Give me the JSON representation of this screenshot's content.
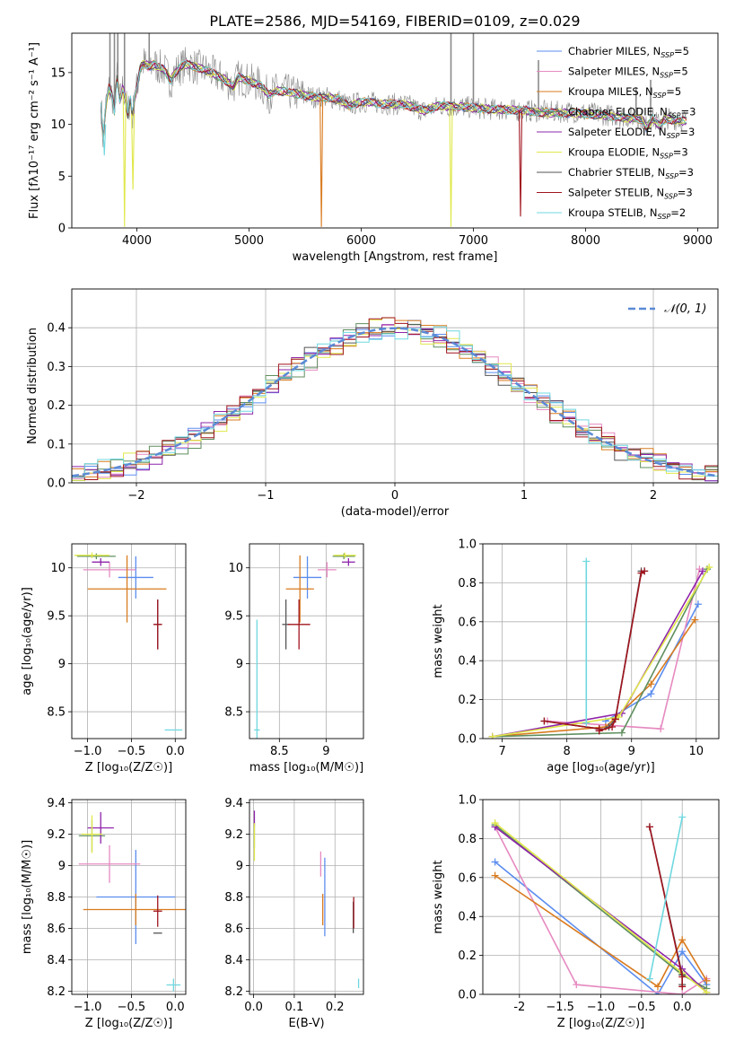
{
  "figure": {
    "title": "PLATE=2586, MJD=54169, FIBERID=0109, z=0.029"
  },
  "colors": {
    "Chabrier MILES": "#5b8def",
    "Salpeter MILES": "#e68ac0",
    "Kroupa MILES": "#d97b1f",
    "Chabrier ELODIE": "#5f8f5f",
    "Salpeter ELODIE": "#8e24aa",
    "Kroupa ELODIE": "#e0e84a",
    "Chabrier STELIB": "#555555",
    "Salpeter STELIB": "#a0141e",
    "Kroupa STELIB": "#6fd8e0",
    "data": "#8a8a8a",
    "gauss": "#5b8ad6",
    "grid": "#b0b0b0"
  },
  "chart_data": [
    {
      "id": "spectrum",
      "type": "line",
      "xlabel": "wavelength [Angstrom, rest frame]",
      "ylabel": "Flux [fλ10⁻¹⁷ erg cm⁻² s⁻¹ A⁻¹]",
      "xlim": [
        3420,
        9180
      ],
      "ylim": [
        0,
        18.8
      ],
      "xticks": [
        4000,
        5000,
        6000,
        7000,
        8000,
        9000
      ],
      "yticks": [
        0,
        5,
        10,
        15
      ],
      "grid": false,
      "legend_position": "right",
      "legend": [
        {
          "label": "Chabrier MILES, N",
          "sub": "SSP",
          "tail": "=5",
          "color_key": "Chabrier MILES"
        },
        {
          "label": "Salpeter MILES, N",
          "sub": "SSP",
          "tail": "=5",
          "color_key": "Salpeter MILES"
        },
        {
          "label": "Kroupa MILES, N",
          "sub": "SSP",
          "tail": "=5",
          "color_key": "Kroupa MILES"
        },
        {
          "label": "Chabrier ELODIE, N",
          "sub": "SSP",
          "tail": "=3",
          "color_key": "Chabrier ELODIE"
        },
        {
          "label": "Salpeter ELODIE, N",
          "sub": "SSP",
          "tail": "=3",
          "color_key": "Salpeter ELODIE"
        },
        {
          "label": "Kroupa ELODIE, N",
          "sub": "SSP",
          "tail": "=3",
          "color_key": "Kroupa ELODIE"
        },
        {
          "label": "Chabrier STELIB, N",
          "sub": "SSP",
          "tail": "=3",
          "color_key": "Chabrier STELIB"
        },
        {
          "label": "Salpeter STELIB, N",
          "sub": "SSP",
          "tail": "=3",
          "color_key": "Salpeter STELIB"
        },
        {
          "label": "Kroupa STELIB, N",
          "sub": "SSP",
          "tail": "=2",
          "color_key": "Kroupa STELIB"
        }
      ],
      "data_series": [
        [
          3680,
          11.8
        ],
        [
          3700,
          8.5
        ],
        [
          3720,
          11.5
        ],
        [
          3750,
          13.5
        ],
        [
          3780,
          12.8
        ],
        [
          3800,
          11.2
        ],
        [
          3820,
          14.8
        ],
        [
          3850,
          12.2
        ],
        [
          3870,
          13.5
        ],
        [
          3890,
          13
        ],
        [
          3920,
          10.8
        ],
        [
          3940,
          12.8
        ],
        [
          3960,
          10.5
        ],
        [
          3980,
          12.6
        ],
        [
          4000,
          13.5
        ],
        [
          4030,
          15.5
        ],
        [
          4060,
          15.9
        ],
        [
          4100,
          15.6
        ],
        [
          4150,
          15.8
        ],
        [
          4200,
          15.5
        ],
        [
          4250,
          15.2
        ],
        [
          4300,
          14.2
        ],
        [
          4340,
          15
        ],
        [
          4400,
          15.6
        ],
        [
          4450,
          15.9
        ],
        [
          4500,
          15.6
        ],
        [
          4600,
          15.3
        ],
        [
          4700,
          14.8
        ],
        [
          4800,
          14.2
        ],
        [
          4860,
          13.6
        ],
        [
          4900,
          14.5
        ],
        [
          5000,
          14.2
        ],
        [
          5100,
          13.8
        ],
        [
          5175,
          12.8
        ],
        [
          5250,
          13.3
        ],
        [
          5400,
          13
        ],
        [
          5500,
          12.8
        ],
        [
          5600,
          12.6
        ],
        [
          5700,
          12.6
        ],
        [
          5800,
          12.4
        ],
        [
          5890,
          11.8
        ],
        [
          6000,
          12.2
        ],
        [
          6200,
          12
        ],
        [
          6400,
          11.9
        ],
        [
          6563,
          11.3
        ],
        [
          6700,
          11.8
        ],
        [
          6900,
          11.7
        ],
        [
          7100,
          11.5
        ],
        [
          7300,
          11.4
        ],
        [
          7500,
          11.3
        ],
        [
          7700,
          11.2
        ],
        [
          7900,
          11.2
        ],
        [
          8100,
          11
        ],
        [
          8300,
          10.8
        ],
        [
          8500,
          10.6
        ],
        [
          8542,
          9.8
        ],
        [
          8600,
          10.6
        ],
        [
          8662,
          9.9
        ],
        [
          8700,
          10.6
        ],
        [
          8900,
          10.4
        ]
      ],
      "data_spikes": [
        [
          3760,
          18.8
        ],
        [
          3800,
          18.8
        ],
        [
          3830,
          18.8
        ],
        [
          3890,
          18.8
        ],
        [
          4110,
          18.8
        ],
        [
          6800,
          18.8
        ],
        [
          7000,
          18.8
        ],
        [
          7580,
          16.2
        ],
        [
          8450,
          13.6
        ],
        [
          8580,
          14.3
        ]
      ],
      "model_dips": [
        {
          "key": "Kroupa ELODIE",
          "x": 3890,
          "min": 0.1
        },
        {
          "key": "Kroupa ELODIE",
          "x": 3965,
          "min": 3.7
        },
        {
          "key": "Kroupa MILES",
          "x": 5645,
          "min": 0.1
        },
        {
          "key": "Kroupa ELODIE",
          "x": 6800,
          "min": 0.1
        },
        {
          "key": "Salpeter STELIB",
          "x": 7420,
          "min": 1.1
        },
        {
          "key": "Kroupa STELIB",
          "x": 3710,
          "min": 7.0
        }
      ]
    },
    {
      "id": "residuals",
      "type": "histogram",
      "xlabel": "(data-model)/error",
      "ylabel": "Normed distribution",
      "xlim": [
        -2.5,
        2.5
      ],
      "ylim": [
        0,
        0.5
      ],
      "xticks": [
        -2,
        -1,
        0,
        1,
        2
      ],
      "yticks": [
        0.0,
        0.1,
        0.2,
        0.3,
        0.4
      ],
      "grid": true,
      "legend_position": "top-right",
      "legend": [
        {
          "label": "𝒩(0, 1)",
          "color_key": "gauss",
          "style": "dashed"
        }
      ],
      "bin_width": 0.1
    },
    {
      "id": "age_vs_Z",
      "type": "errorbar",
      "xlabel": "Z [log₁₀(Z/Z☉)]",
      "ylabel": "age  [log₁₀(age/yr)]",
      "xlim": [
        -1.18,
        0.12
      ],
      "ylim": [
        8.22,
        10.25
      ],
      "xticks": [
        -1.0,
        -0.5,
        0.0
      ],
      "yticks": [
        8.5,
        9.0,
        9.5,
        10.0
      ],
      "grid": true,
      "points": [
        {
          "key": "Chabrier MILES",
          "x": -0.45,
          "xerr": 0.2,
          "y": 9.9,
          "yerr": 0.22
        },
        {
          "key": "Salpeter MILES",
          "x": -0.75,
          "xerr": 0.3,
          "y": 9.98,
          "yerr": 0.08
        },
        {
          "key": "Kroupa MILES",
          "x": -0.55,
          "xerr": 0.45,
          "y": 9.78,
          "yerr": 0.35
        },
        {
          "key": "Chabrier ELODIE",
          "x": -0.9,
          "xerr": 0.22,
          "y": 10.12,
          "yerr": 0.03
        },
        {
          "key": "Salpeter ELODIE",
          "x": -0.85,
          "xerr": 0.1,
          "y": 10.06,
          "yerr": 0.04
        },
        {
          "key": "Kroupa ELODIE",
          "x": -0.95,
          "xerr": 0.2,
          "y": 10.13,
          "yerr": 0.03
        },
        {
          "key": "Chabrier STELIB",
          "x": -0.2,
          "xerr": 0.04,
          "y": 9.41,
          "yerr": 0.26
        },
        {
          "key": "Salpeter STELIB",
          "x": -0.2,
          "xerr": 0.05,
          "y": 9.41,
          "yerr": 0.26
        },
        {
          "key": "Kroupa STELIB",
          "x": -0.02,
          "xerr": 0.1,
          "y": 8.31,
          "yerr": 0.0
        }
      ]
    },
    {
      "id": "age_vs_mass",
      "type": "errorbar",
      "xlabel": "mass [log₁₀(M/M☉)]",
      "ylabel": "",
      "xlim": [
        8.18,
        9.4
      ],
      "ylim": [
        8.22,
        10.25
      ],
      "xticks": [
        8.5,
        9.0
      ],
      "yticks": [
        8.5,
        9.0,
        9.5,
        10.0
      ],
      "grid": true,
      "points": [
        {
          "key": "Chabrier MILES",
          "x": 8.8,
          "xerr": 0.15,
          "y": 9.9,
          "yerr": 0.22
        },
        {
          "key": "Salpeter MILES",
          "x": 9.01,
          "xerr": 0.1,
          "y": 9.98,
          "yerr": 0.08
        },
        {
          "key": "Kroupa MILES",
          "x": 8.72,
          "xerr": 0.15,
          "y": 9.78,
          "yerr": 0.35
        },
        {
          "key": "Chabrier ELODIE",
          "x": 9.19,
          "xerr": 0.12,
          "y": 10.12,
          "yerr": 0.03
        },
        {
          "key": "Salpeter ELODIE",
          "x": 9.24,
          "xerr": 0.07,
          "y": 10.06,
          "yerr": 0.04
        },
        {
          "key": "Kroupa ELODIE",
          "x": 9.2,
          "xerr": 0.12,
          "y": 10.13,
          "yerr": 0.03
        },
        {
          "key": "Chabrier STELIB",
          "x": 8.57,
          "xerr": 0.04,
          "y": 9.41,
          "yerr": 0.26
        },
        {
          "key": "Salpeter STELIB",
          "x": 8.71,
          "xerr": 0.12,
          "y": 9.41,
          "yerr": 0.26
        },
        {
          "key": "Kroupa STELIB",
          "x": 8.26,
          "xerr": 0.03,
          "y": 8.31,
          "yerr": 1.15
        }
      ]
    },
    {
      "id": "weight_vs_age",
      "type": "line",
      "xlabel": "age  [log₁₀(age/yr)]",
      "ylabel": "mass weight",
      "xlim": [
        6.7,
        10.35
      ],
      "ylim": [
        0,
        1
      ],
      "xticks": [
        7,
        8,
        9,
        10
      ],
      "yticks": [
        0.0,
        0.2,
        0.4,
        0.6,
        0.8,
        1.0
      ],
      "grid": true,
      "series": [
        {
          "key": "Chabrier MILES",
          "x": [
            8.6,
            9.3,
            10.03
          ],
          "y": [
            0.09,
            0.23,
            0.69
          ]
        },
        {
          "key": "Salpeter MILES",
          "x": [
            7.7,
            9.45,
            10.05
          ],
          "y": [
            0.09,
            0.05,
            0.87
          ]
        },
        {
          "key": "Kroupa MILES",
          "x": [
            6.85,
            8.6,
            9.3,
            9.98
          ],
          "y": [
            0.01,
            0.06,
            0.28,
            0.61
          ]
        },
        {
          "key": "Chabrier ELODIE",
          "x": [
            6.85,
            8.85,
            10.17
          ],
          "y": [
            0.01,
            0.03,
            0.87
          ]
        },
        {
          "key": "Salpeter ELODIE",
          "x": [
            6.85,
            8.85,
            10.1
          ],
          "y": [
            0.01,
            0.13,
            0.86
          ]
        },
        {
          "key": "Kroupa ELODIE",
          "x": [
            6.85,
            8.8,
            10.2
          ],
          "y": [
            0.01,
            0.11,
            0.88
          ]
        },
        {
          "key": "Chabrier STELIB",
          "x": [
            7.65,
            8.5,
            8.5,
            8.65,
            8.75,
            9.15,
            9.2
          ],
          "y": [
            0.09,
            0.05,
            0.04,
            0.06,
            0.1,
            0.86,
            0.86
          ]
        },
        {
          "key": "Salpeter STELIB",
          "x": [
            7.65,
            8.5,
            8.5,
            8.7,
            8.75,
            9.15,
            9.2
          ],
          "y": [
            0.09,
            0.05,
            0.04,
            0.06,
            0.1,
            0.85,
            0.86
          ]
        },
        {
          "key": "Kroupa STELIB",
          "x": [
            8.3,
            8.3
          ],
          "y": [
            0.08,
            0.91
          ]
        }
      ]
    },
    {
      "id": "mass_vs_Z",
      "type": "errorbar",
      "xlabel": "Z [log₁₀(Z/Z☉)]",
      "ylabel": "mass [log₁₀(M/M☉)]",
      "xlim": [
        -1.18,
        0.12
      ],
      "ylim": [
        8.18,
        9.42
      ],
      "xticks": [
        -1.0,
        -0.5,
        0.0
      ],
      "yticks": [
        8.2,
        8.4,
        8.6,
        8.8,
        9.0,
        9.2,
        9.4
      ],
      "grid": true,
      "points": [
        {
          "key": "Chabrier MILES",
          "x": -0.45,
          "xerr": 0.45,
          "y": 8.8,
          "yerr": 0.3
        },
        {
          "key": "Salpeter MILES",
          "x": -0.75,
          "xerr": 0.35,
          "y": 9.01,
          "yerr": 0.12
        },
        {
          "key": "Kroupa MILES",
          "x": -0.45,
          "xerr": 0.6,
          "y": 8.72,
          "yerr": 0.1
        },
        {
          "key": "Chabrier ELODIE",
          "x": -0.95,
          "xerr": 0.15,
          "y": 9.19,
          "yerr": 0.1
        },
        {
          "key": "Salpeter ELODIE",
          "x": -0.85,
          "xerr": 0.15,
          "y": 9.24,
          "yerr": 0.1
        },
        {
          "key": "Kroupa ELODIE",
          "x": -0.95,
          "xerr": 0.12,
          "y": 9.2,
          "yerr": 0.12
        },
        {
          "key": "Chabrier STELIB",
          "x": -0.2,
          "xerr": 0.05,
          "y": 8.57,
          "yerr": 0.0
        },
        {
          "key": "Salpeter STELIB",
          "x": -0.2,
          "xerr": 0.05,
          "y": 8.71,
          "yerr": 0.1
        },
        {
          "key": "Kroupa STELIB",
          "x": -0.02,
          "xerr": 0.08,
          "y": 8.24,
          "yerr": 0.04
        }
      ]
    },
    {
      "id": "mass_vs_EBV",
      "type": "errorbar",
      "xlabel": "E(B-V)",
      "ylabel": "",
      "xlim": [
        -0.01,
        0.27
      ],
      "ylim": [
        8.18,
        9.42
      ],
      "xticks": [
        0.0,
        0.1,
        0.2
      ],
      "yticks": [
        8.2,
        8.4,
        8.6,
        8.8,
        9.0,
        9.2,
        9.4
      ],
      "grid": true,
      "points": [
        {
          "key": "Chabrier MILES",
          "x": 0.175,
          "xerr": 0.0,
          "y": 8.8,
          "yerr": 0.25
        },
        {
          "key": "Salpeter MILES",
          "x": 0.165,
          "xerr": 0.0,
          "y": 9.01,
          "yerr": 0.08
        },
        {
          "key": "Kroupa MILES",
          "x": 0.17,
          "xerr": 0.0,
          "y": 8.72,
          "yerr": 0.1
        },
        {
          "key": "Chabrier ELODIE",
          "x": 0.002,
          "xerr": 0.0,
          "y": 9.19,
          "yerr": 0.08
        },
        {
          "key": "Salpeter ELODIE",
          "x": 0.002,
          "xerr": 0.0,
          "y": 9.3,
          "yerr": 0.05
        },
        {
          "key": "Kroupa ELODIE",
          "x": 0.002,
          "xerr": 0.0,
          "y": 9.15,
          "yerr": 0.12
        },
        {
          "key": "Chabrier STELIB",
          "x": 0.245,
          "xerr": 0.0,
          "y": 8.67,
          "yerr": 0.1
        },
        {
          "key": "Salpeter STELIB",
          "x": 0.246,
          "xerr": 0.0,
          "y": 8.7,
          "yerr": 0.1
        },
        {
          "key": "Kroupa STELIB",
          "x": 0.258,
          "xerr": 0.0,
          "y": 8.25,
          "yerr": 0.03
        }
      ]
    },
    {
      "id": "weight_vs_Z",
      "type": "line",
      "xlabel": "Z [log₁₀(Z/Z☉)]",
      "ylabel": "mass weight",
      "xlim": [
        -2.45,
        0.45
      ],
      "ylim": [
        0,
        1
      ],
      "xticks": [
        -2.0,
        -1.5,
        -1.0,
        -0.5,
        0.0
      ],
      "yticks": [
        0.0,
        0.2,
        0.4,
        0.6,
        0.8,
        1.0
      ],
      "grid": true,
      "series": [
        {
          "key": "Chabrier MILES",
          "x": [
            -2.3,
            -0.3,
            0.0,
            0.3
          ],
          "y": [
            0.68,
            0.0,
            0.22,
            0.05
          ]
        },
        {
          "key": "Salpeter MILES",
          "x": [
            -2.3,
            -1.3,
            0.0,
            0.3
          ],
          "y": [
            0.86,
            0.05,
            0.0,
            0.08
          ]
        },
        {
          "key": "Kroupa MILES",
          "x": [
            -2.3,
            -0.3,
            0.0,
            0.3
          ],
          "y": [
            0.61,
            0.04,
            0.28,
            0.07
          ]
        },
        {
          "key": "Chabrier ELODIE",
          "x": [
            -2.3,
            0.0,
            0.3
          ],
          "y": [
            0.87,
            0.1,
            0.03
          ]
        },
        {
          "key": "Salpeter ELODIE",
          "x": [
            -2.3,
            0.0,
            0.3
          ],
          "y": [
            0.86,
            0.13,
            0.01
          ]
        },
        {
          "key": "Kroupa ELODIE",
          "x": [
            -2.3,
            0.0,
            0.3
          ],
          "y": [
            0.88,
            0.11,
            0.01
          ]
        },
        {
          "key": "Chabrier STELIB",
          "x": [
            -0.4,
            0.0,
            0.0
          ],
          "y": [
            0.86,
            0.1,
            0.05
          ]
        },
        {
          "key": "Salpeter STELIB",
          "x": [
            -0.4,
            0.0,
            0.0
          ],
          "y": [
            0.86,
            0.09,
            0.04
          ]
        },
        {
          "key": "Kroupa STELIB",
          "x": [
            -0.4,
            0.0
          ],
          "y": [
            0.08,
            0.91
          ]
        }
      ]
    }
  ]
}
